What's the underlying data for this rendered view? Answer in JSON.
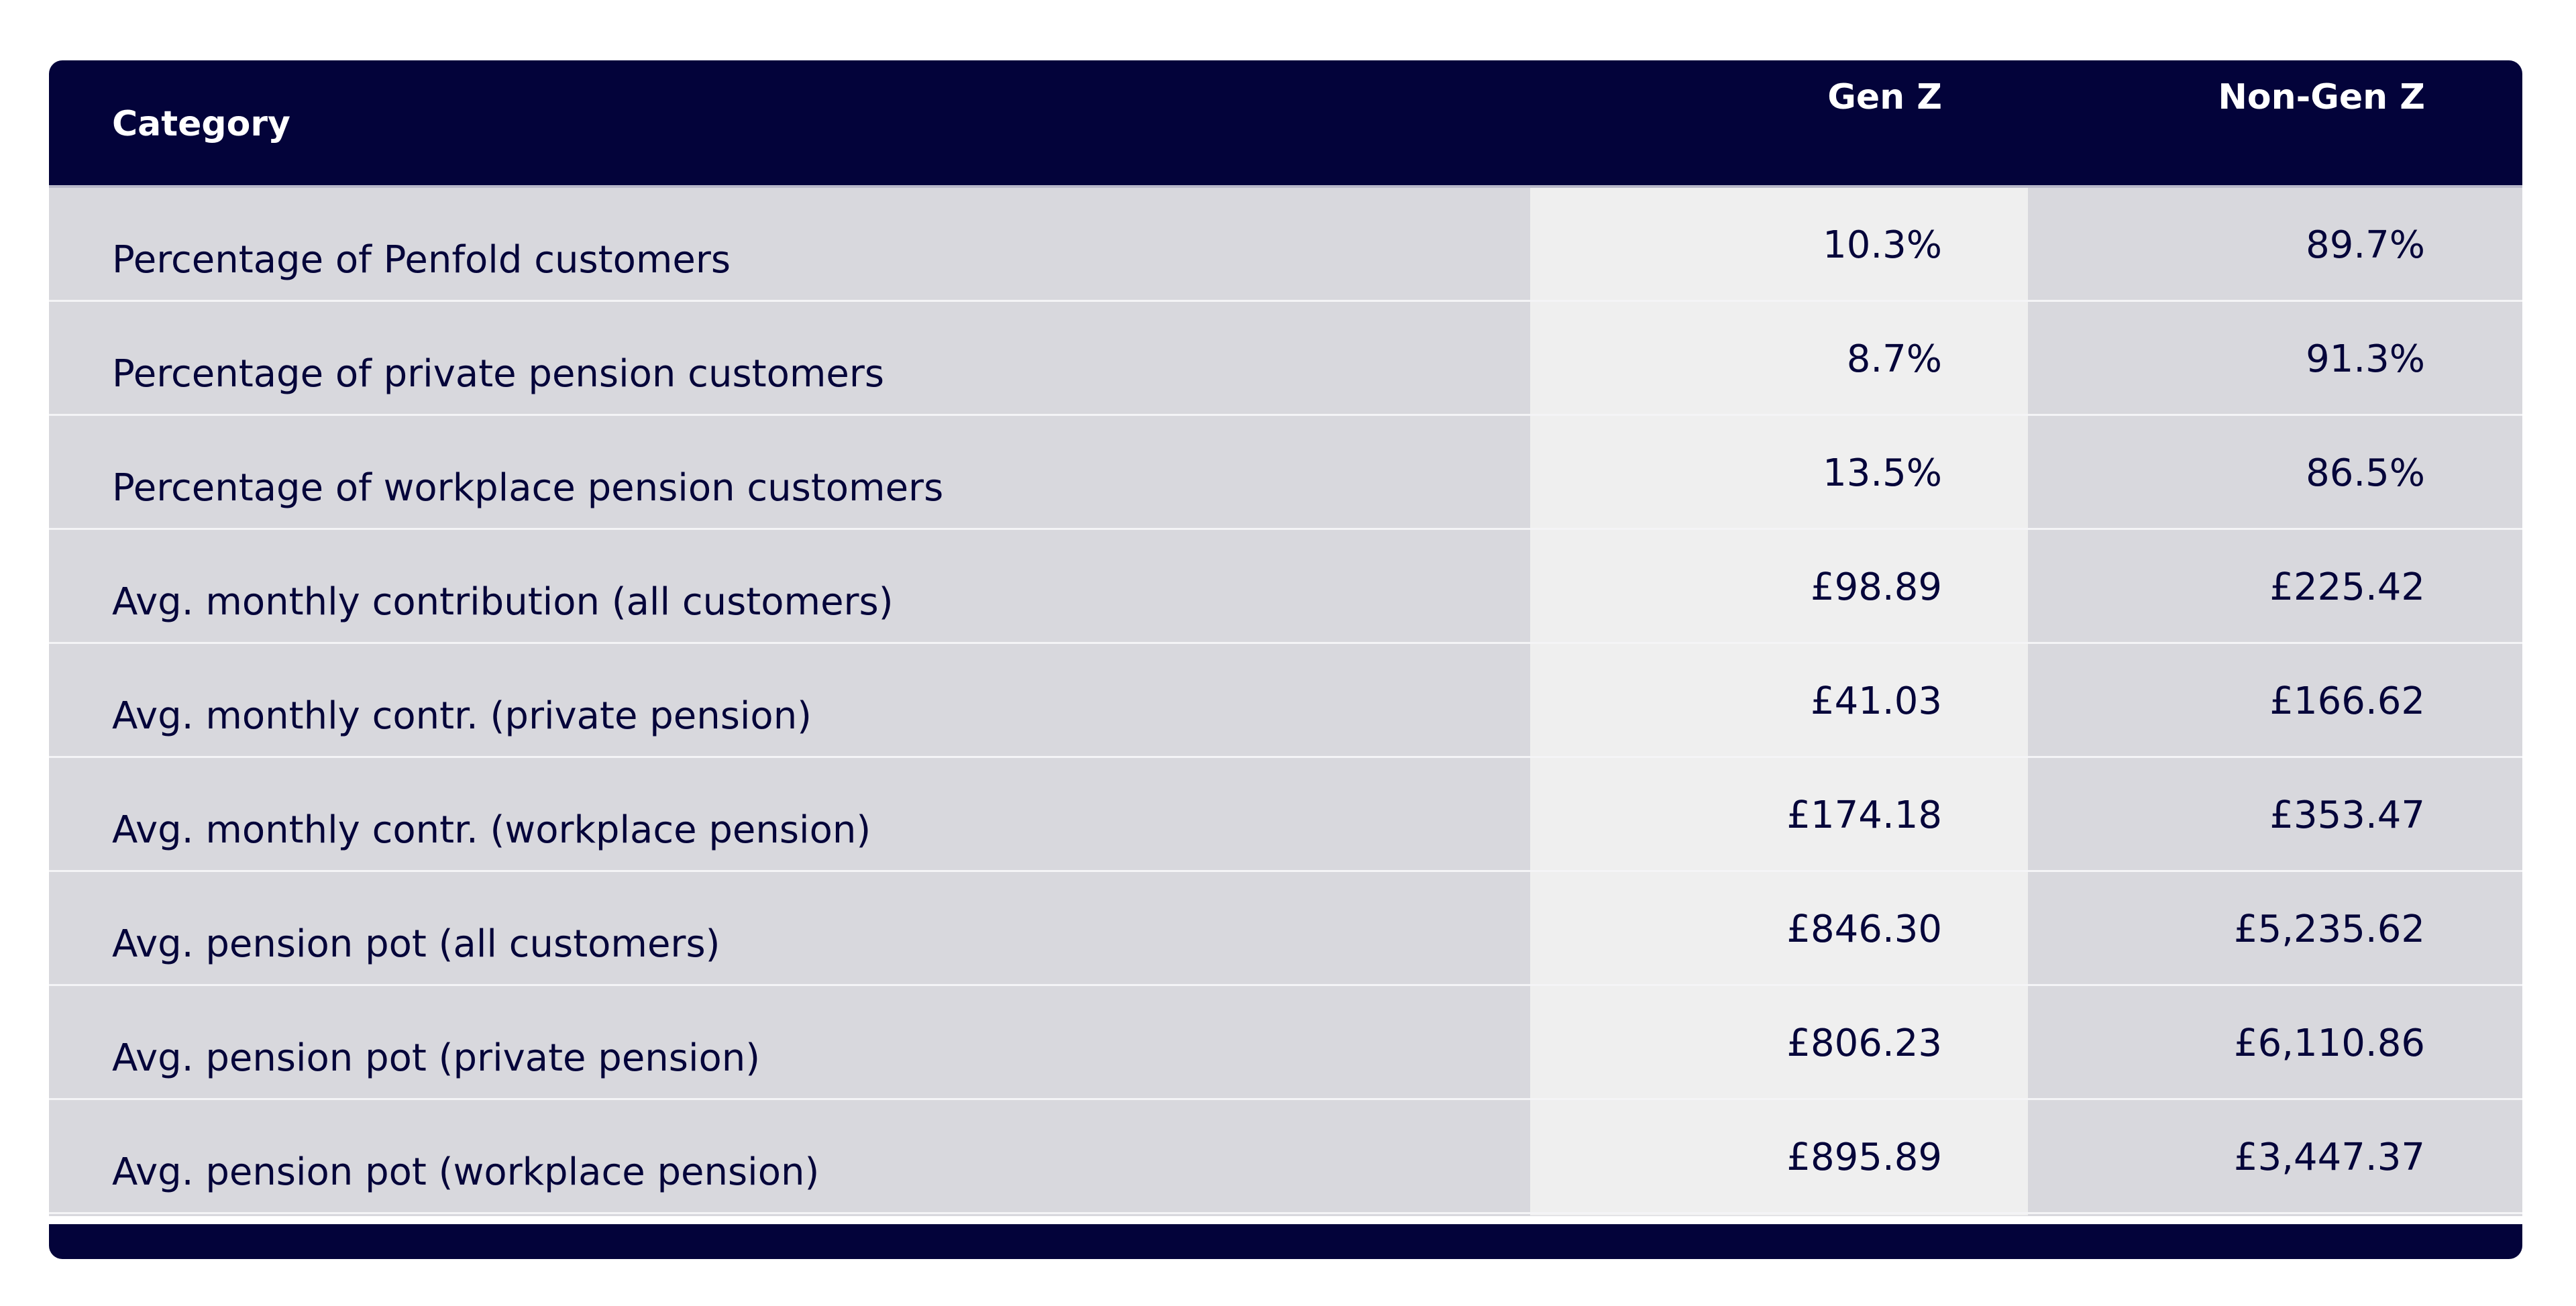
{
  "header": {
    "category": "Category",
    "gen_z": "Gen Z",
    "non_gen_z": "Non-Gen Z"
  },
  "rows": [
    {
      "category": "Percentage of Penfold customers",
      "gen_z": "10.3%",
      "non_gen_z": "89.7%"
    },
    {
      "category": "Percentage of private pension customers",
      "gen_z": "8.7%",
      "non_gen_z": "91.3%"
    },
    {
      "category": "Percentage of workplace pension customers",
      "gen_z": "13.5%",
      "non_gen_z": "86.5%"
    },
    {
      "category": "Avg. monthly contribution (all customers)",
      "gen_z": "£98.89",
      "non_gen_z": "£225.42"
    },
    {
      "category": "Avg. monthly contr. (private pension)",
      "gen_z": "£41.03",
      "non_gen_z": "£166.62"
    },
    {
      "category": "Avg. monthly contr. (workplace pension)",
      "gen_z": "£174.18",
      "non_gen_z": "£353.47"
    },
    {
      "category": "Avg. pension pot (all customers)",
      "gen_z": "£846.30",
      "non_gen_z": "£5,235.62"
    },
    {
      "category": "Avg. pension pot (private pension)",
      "gen_z": "£806.23",
      "non_gen_z": "£6,110.86"
    },
    {
      "category": "Avg. pension pot (workplace pension)",
      "gen_z": "£895.89",
      "non_gen_z": "£3,447.37"
    }
  ],
  "colors": {
    "header_bg": "#03033a",
    "row_bg": "#d8d8dd",
    "gen_z_column_bg": "#efefef",
    "text": "#05053a"
  }
}
